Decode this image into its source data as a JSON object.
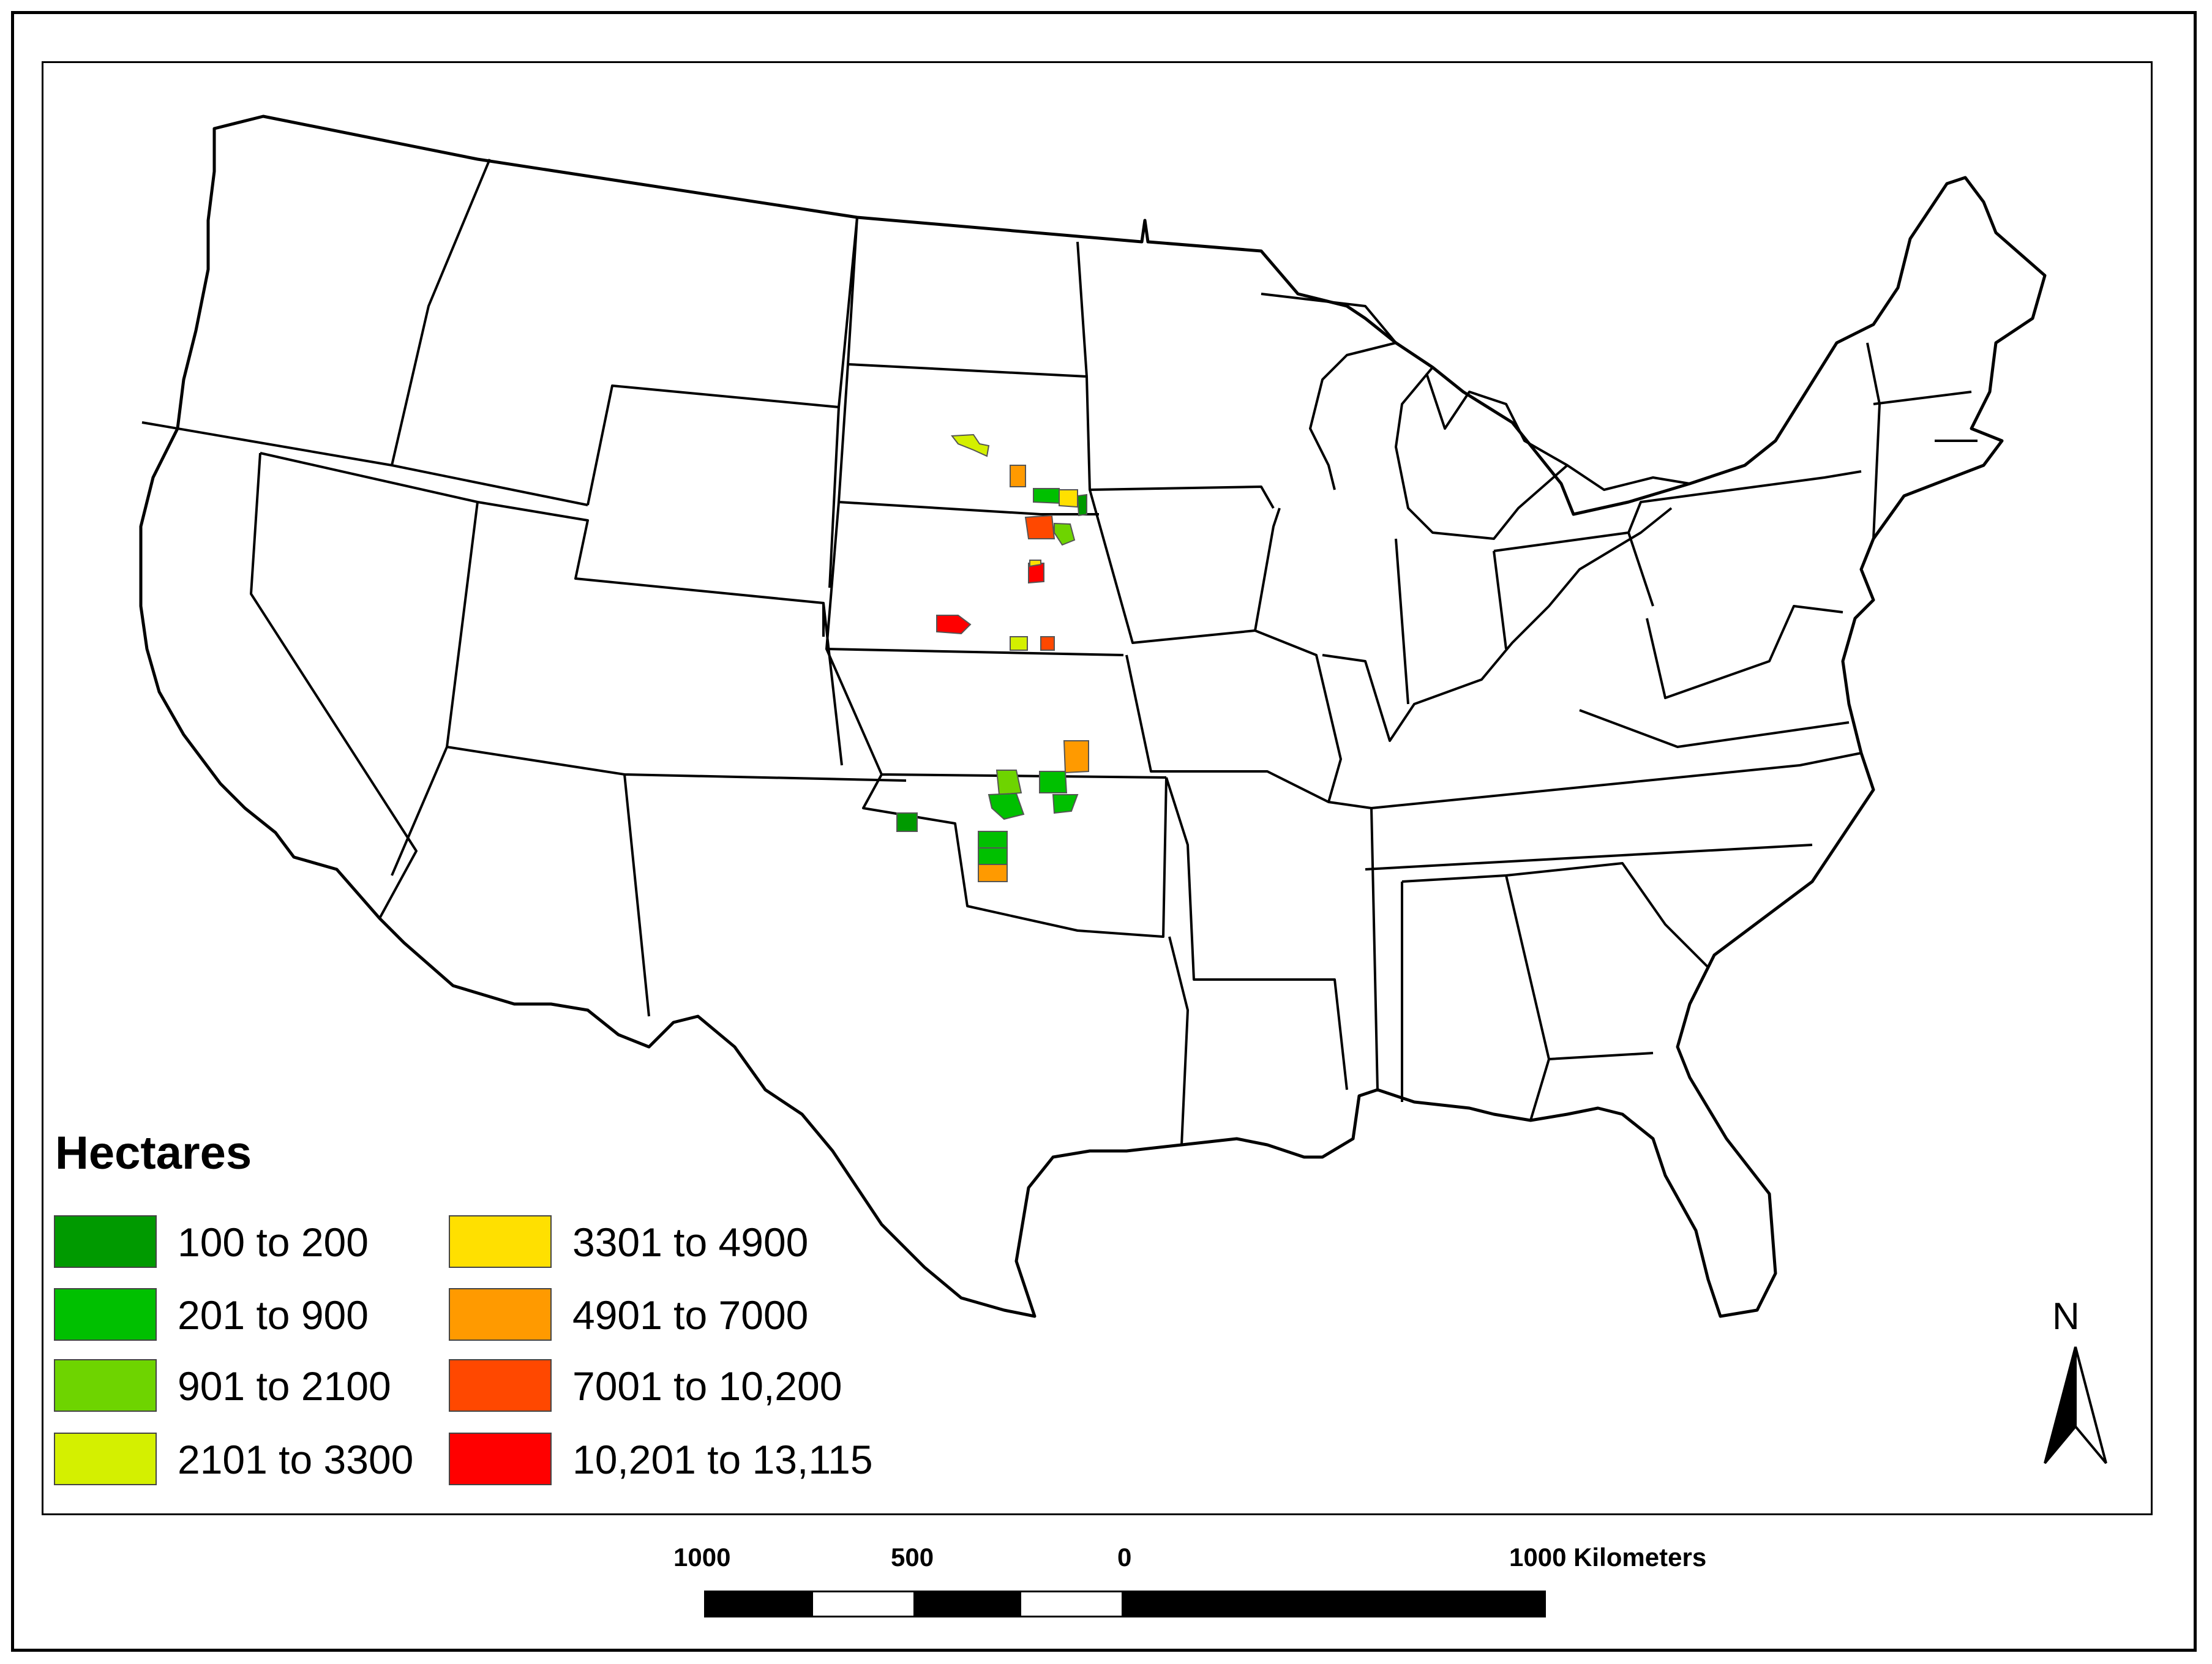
{
  "legend": {
    "title": "Hectares",
    "items": [
      {
        "label": "100 to 200",
        "color": "#009a00"
      },
      {
        "label": "201 to 900",
        "color": "#00c000"
      },
      {
        "label": "901 to 2100",
        "color": "#6ed400"
      },
      {
        "label": "2101 to 3300",
        "color": "#d4f000"
      },
      {
        "label": "3301 to 4900",
        "color": "#ffe000"
      },
      {
        "label": "4901 to 7000",
        "color": "#ff9a00"
      },
      {
        "label": "7001 to 10,200",
        "color": "#ff4800"
      },
      {
        "label": "10,201 to 13,115",
        "color": "#ff0000"
      }
    ]
  },
  "north_arrow": {
    "label": "N"
  },
  "scale_bar": {
    "labels": [
      "1000",
      "500",
      "0",
      "1000 Kilometers"
    ]
  },
  "sites": [
    {
      "class": 3,
      "color": "#d4f000"
    },
    {
      "class": 5,
      "color": "#ff9a00"
    },
    {
      "class": 1,
      "color": "#00c000"
    },
    {
      "class": 4,
      "color": "#ffe000"
    },
    {
      "class": 0,
      "color": "#009a00"
    },
    {
      "class": 6,
      "color": "#ff4800"
    },
    {
      "class": 2,
      "color": "#6ed400"
    },
    {
      "class": 7,
      "color": "#ff0000"
    },
    {
      "class": 4,
      "color": "#ffe000"
    },
    {
      "class": 7,
      "color": "#ff0000"
    },
    {
      "class": 3,
      "color": "#d4f000"
    },
    {
      "class": 6,
      "color": "#ff4800"
    },
    {
      "class": 5,
      "color": "#ff9a00"
    },
    {
      "class": 2,
      "color": "#6ed400"
    },
    {
      "class": 1,
      "color": "#00c000"
    },
    {
      "class": 1,
      "color": "#00c000"
    },
    {
      "class": 1,
      "color": "#00c000"
    },
    {
      "class": 0,
      "color": "#009a00"
    },
    {
      "class": 1,
      "color": "#00c000"
    },
    {
      "class": 1,
      "color": "#00c000"
    },
    {
      "class": 5,
      "color": "#ff9a00"
    }
  ]
}
